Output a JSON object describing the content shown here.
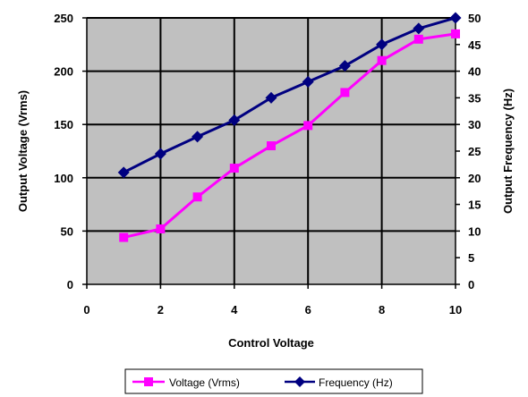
{
  "chart_data": {
    "type": "line",
    "title": "",
    "xlabel": "Control Voltage",
    "ylabel": "Output Voltage (Vrms)",
    "y2label": "Output Frequency (Hz)",
    "xlim": [
      0,
      10
    ],
    "ylim": [
      0,
      250
    ],
    "y2lim": [
      0,
      50
    ],
    "x_ticks": [
      0,
      2,
      4,
      6,
      8,
      10
    ],
    "y_ticks": [
      0,
      50,
      100,
      150,
      200,
      250
    ],
    "y2_ticks": [
      0,
      5,
      10,
      15,
      20,
      25,
      30,
      35,
      40,
      45,
      50
    ],
    "grid": true,
    "plot_background": "#c0c0c0",
    "legend_position": "bottom",
    "series": [
      {
        "name": "Voltage (Vrms)",
        "axis": "left",
        "color": "#ff00ff",
        "marker": "square",
        "x": [
          1,
          2,
          3,
          4,
          5,
          6,
          7,
          8,
          9,
          10
        ],
        "values": [
          44,
          52,
          82,
          109,
          130,
          149,
          180,
          210,
          230,
          235
        ]
      },
      {
        "name": "Frequency (Hz)",
        "axis": "right",
        "color": "#000080",
        "marker": "diamond",
        "x": [
          1,
          2,
          3,
          4,
          5,
          6,
          7,
          8,
          9,
          10
        ],
        "values": [
          21,
          24.5,
          27.7,
          30.8,
          35,
          38,
          41,
          45,
          48,
          50
        ]
      }
    ]
  }
}
